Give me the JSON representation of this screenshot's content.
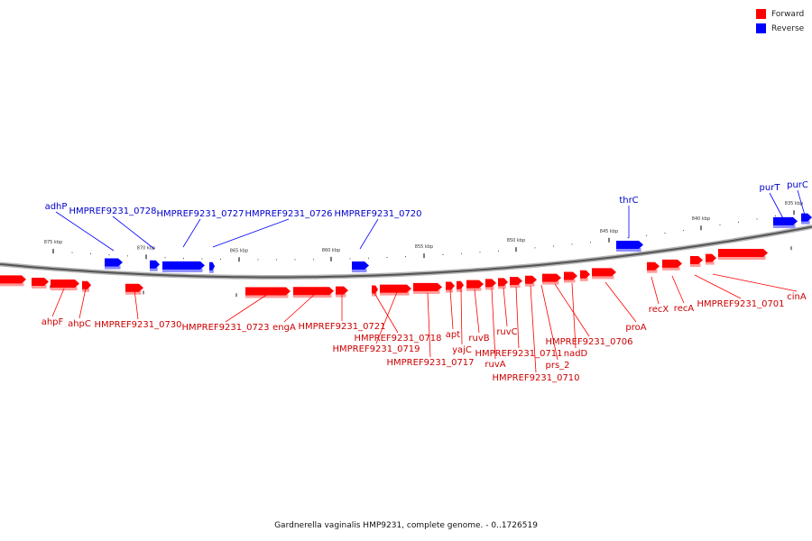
{
  "legend": {
    "forward": {
      "label": "Forward",
      "color": "#ff0000"
    },
    "reverse": {
      "label": "Reverse",
      "color": "#0000ff"
    }
  },
  "caption": "Gardnerella vaginalis HMP9231, complete genome. - 0..1726519",
  "ticks": [
    "875 kbp",
    "870 kbp",
    "865 kbp",
    "860 kbp",
    "855 kbp",
    "850 kbp",
    "845 kbp",
    "840 kbp",
    "835 kbp"
  ],
  "reverse_labels": [
    "adhP",
    "HMPREF9231_0728",
    "HMPREF9231_0727",
    "HMPREF9231_0726",
    "HMPREF9231_0720",
    "thrC",
    "purT",
    "purC"
  ],
  "forward_labels": [
    "ahpF",
    "ahpC",
    "HMPREF9231_0730",
    "HMPREF9231_0723",
    "engA",
    "HMPREF9231_0721",
    "HMPREF9231_0718",
    "HMPREF9231_0719",
    "HMPREF9231_0717",
    "apt",
    "yajC",
    "ruvB",
    "ruvA",
    "ruvC",
    "HMPREF9231_0711",
    "HMPREF9231_0710",
    "prs_2",
    "HMPREF9231_0706",
    "nadD",
    "proA",
    "recX",
    "recA",
    "HMPREF9231_0701",
    "cinA"
  ]
}
